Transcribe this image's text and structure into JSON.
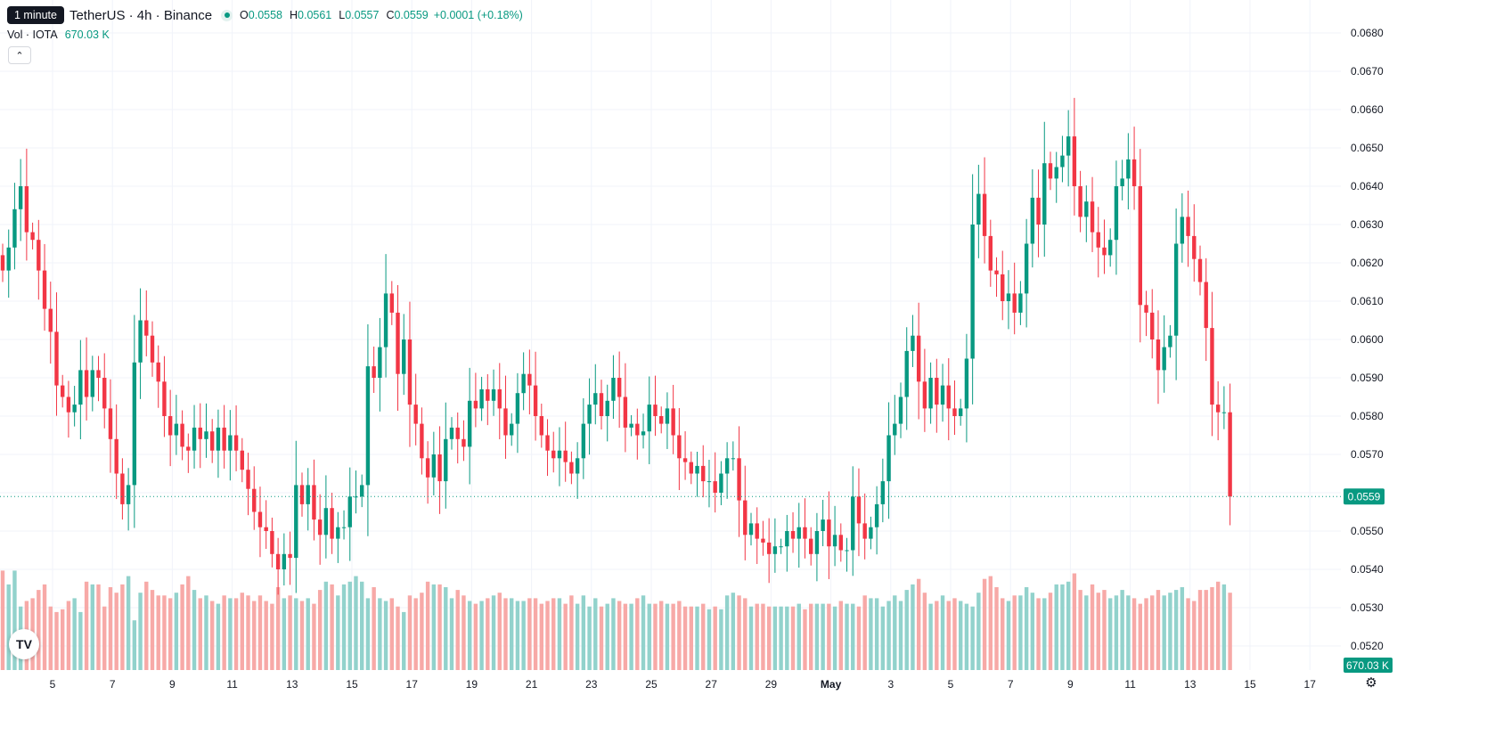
{
  "legend": {
    "interval_tooltip": "1 minute",
    "symbol": "TetherUS · 4h · Binance",
    "ohlc": [
      {
        "k": "O",
        "v": "0.0558"
      },
      {
        "k": "H",
        "v": "0.0561"
      },
      {
        "k": "L",
        "v": "0.0557"
      },
      {
        "k": "C",
        "v": "0.0559"
      }
    ],
    "change": "+0.0001 (+0.18%)"
  },
  "volume_legend": {
    "label": "Vol · IOTA",
    "value": "670.03 K"
  },
  "colors": {
    "up": "#089981",
    "down": "#f23645",
    "up_volume": "#92d2cc",
    "down_volume": "#f7a9a7",
    "grid": "#f0f3fa"
  },
  "icons": {
    "collapse": "chevron-up-icon",
    "logo": "tradingview-logo-icon",
    "settings": "gear-icon"
  },
  "chart_data": {
    "type": "candlestick",
    "title": "TetherUS · 4h · Binance",
    "interval": "4h",
    "ylim": [
      0.0513,
      0.0685
    ],
    "y_ticks": [
      "0.0680",
      "0.0670",
      "0.0660",
      "0.0650",
      "0.0640",
      "0.0630",
      "0.0620",
      "0.0610",
      "0.0600",
      "0.0590",
      "0.0580",
      "0.0570",
      "0.0560",
      "0.0550",
      "0.0540",
      "0.0530",
      "0.0520"
    ],
    "x_labels": [
      "5",
      "7",
      "9",
      "11",
      "13",
      "15",
      "17",
      "19",
      "21",
      "23",
      "25",
      "27",
      "29",
      "May",
      "3",
      "5",
      "7",
      "9",
      "11",
      "13",
      "15",
      "17"
    ],
    "last_price": "0.0559",
    "last_price_value": 0.0559,
    "last_volume": "670.03 K",
    "closes": [
      0.0618,
      0.0624,
      0.0634,
      0.064,
      0.0628,
      0.0626,
      0.0618,
      0.0608,
      0.0602,
      0.0588,
      0.0585,
      0.0581,
      0.0583,
      0.0592,
      0.0585,
      0.0592,
      0.059,
      0.0582,
      0.0574,
      0.0565,
      0.0557,
      0.0562,
      0.0594,
      0.0605,
      0.0601,
      0.0594,
      0.0589,
      0.058,
      0.0575,
      0.0578,
      0.0572,
      0.0571,
      0.0577,
      0.0574,
      0.0576,
      0.0571,
      0.0577,
      0.0571,
      0.0575,
      0.0571,
      0.0566,
      0.0561,
      0.0555,
      0.0551,
      0.055,
      0.0544,
      0.054,
      0.0544,
      0.0543,
      0.0562,
      0.0557,
      0.0562,
      0.0553,
      0.0549,
      0.0556,
      0.0548,
      0.0551,
      0.0551,
      0.0559,
      0.0559,
      0.0562,
      0.0593,
      0.059,
      0.0598,
      0.0612,
      0.0607,
      0.0591,
      0.06,
      0.0583,
      0.0578,
      0.0569,
      0.0564,
      0.057,
      0.0563,
      0.0574,
      0.0577,
      0.0574,
      0.0572,
      0.0584,
      0.0582,
      0.0587,
      0.0584,
      0.0587,
      0.0582,
      0.0575,
      0.0578,
      0.0586,
      0.0591,
      0.0588,
      0.058,
      0.0575,
      0.0571,
      0.0569,
      0.0571,
      0.0568,
      0.0565,
      0.0569,
      0.0578,
      0.0583,
      0.0586,
      0.058,
      0.0584,
      0.059,
      0.0585,
      0.0577,
      0.0578,
      0.0575,
      0.0576,
      0.0583,
      0.058,
      0.0578,
      0.0582,
      0.0575,
      0.0569,
      0.0568,
      0.0565,
      0.0567,
      0.0563,
      0.0563,
      0.056,
      0.0565,
      0.0569,
      0.0569,
      0.0558,
      0.0549,
      0.0552,
      0.0548,
      0.0547,
      0.0544,
      0.0546,
      0.0546,
      0.055,
      0.0548,
      0.0551,
      0.0548,
      0.0544,
      0.055,
      0.0553,
      0.0546,
      0.0549,
      0.0545,
      0.0545,
      0.0559,
      0.0552,
      0.0548,
      0.0551,
      0.0557,
      0.0563,
      0.0575,
      0.0578,
      0.0585,
      0.0597,
      0.0601,
      0.0589,
      0.0582,
      0.059,
      0.0583,
      0.0588,
      0.0582,
      0.058,
      0.0582,
      0.0595,
      0.063,
      0.0638,
      0.0627,
      0.0618,
      0.0617,
      0.061,
      0.0612,
      0.0607,
      0.0612,
      0.0625,
      0.0637,
      0.063,
      0.0646,
      0.0642,
      0.0645,
      0.0648,
      0.0653,
      0.064,
      0.0632,
      0.0636,
      0.0628,
      0.0624,
      0.0622,
      0.0626,
      0.064,
      0.0642,
      0.0647,
      0.064,
      0.0609,
      0.0607,
      0.06,
      0.0592,
      0.0598,
      0.0601,
      0.0625,
      0.0632,
      0.0627,
      0.0621,
      0.0615,
      0.0603,
      0.0583,
      0.0581,
      0.0581,
      0.0559
    ],
    "volumes": [
      36,
      31,
      36,
      23,
      25,
      26,
      29,
      31,
      23,
      21,
      22,
      25,
      26,
      21,
      32,
      31,
      31,
      23,
      30,
      28,
      31,
      34,
      18,
      28,
      32,
      29,
      27,
      27,
      26,
      28,
      31,
      34,
      29,
      26,
      27,
      25,
      24,
      27,
      26,
      26,
      28,
      27,
      25,
      27,
      25,
      24,
      30,
      26,
      27,
      26,
      25,
      26,
      24,
      29,
      32,
      31,
      27,
      31,
      32,
      34,
      32,
      26,
      30,
      26,
      25,
      26,
      23,
      21,
      27,
      26,
      28,
      32,
      31,
      31,
      30,
      26,
      29,
      27,
      25,
      24,
      25,
      26,
      27,
      28,
      26,
      26,
      25,
      25,
      26,
      26,
      24,
      25,
      26,
      26,
      24,
      27,
      24,
      27,
      23,
      26,
      23,
      24,
      26,
      25,
      24,
      24,
      26,
      27,
      24,
      24,
      25,
      24,
      24,
      25,
      23,
      23,
      23,
      24,
      22,
      23,
      22,
      27,
      28,
      27,
      26,
      23,
      24,
      24,
      23,
      23,
      23,
      23,
      23,
      24,
      22,
      24,
      24,
      24,
      24,
      23,
      25,
      24,
      24,
      23,
      27,
      26,
      26,
      23,
      25,
      27,
      25,
      29,
      31,
      33,
      28,
      24,
      25,
      27,
      25,
      26,
      25,
      24,
      23,
      28,
      33,
      34,
      30,
      26,
      25,
      27,
      27,
      30,
      28,
      26,
      26,
      28,
      31,
      31,
      32,
      35,
      29,
      27,
      31,
      28,
      29,
      26,
      27,
      29,
      27,
      26,
      24,
      26,
      27,
      29,
      27,
      28,
      29,
      30,
      26,
      25,
      29,
      29,
      30,
      32,
      31,
      28,
      26,
      22,
      18,
      22
    ],
    "volume_range": [
      0,
      100
    ]
  }
}
